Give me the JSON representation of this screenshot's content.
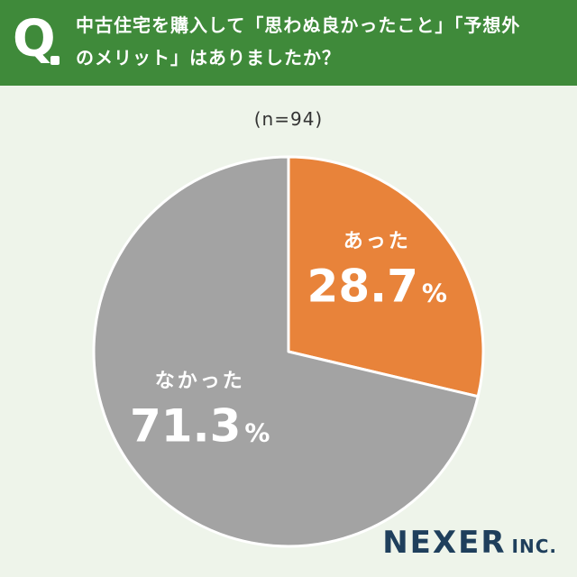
{
  "header": {
    "q_mark": "Q",
    "question_line1": "中古住宅を購入して「思わぬ良かったこと」「予想外",
    "question_line2": "のメリット」はありましたか？"
  },
  "sample_size": "(n=94)",
  "logo": {
    "main": "NEXER",
    "suffix": "INC."
  },
  "colors": {
    "header": "#3f8a3a",
    "background": "#eef4ea",
    "slice_yes": "#e8833a",
    "slice_no": "#a3a3a3"
  },
  "chart_data": {
    "type": "pie",
    "slices": [
      {
        "label": "あった",
        "value": 28.7,
        "display": "28.7",
        "unit": "%",
        "color": "#e8833a"
      },
      {
        "label": "なかった",
        "value": 71.3,
        "display": "71.3",
        "unit": "%",
        "color": "#a3a3a3"
      }
    ],
    "start": "12 o'clock",
    "direction": "clockwise"
  }
}
